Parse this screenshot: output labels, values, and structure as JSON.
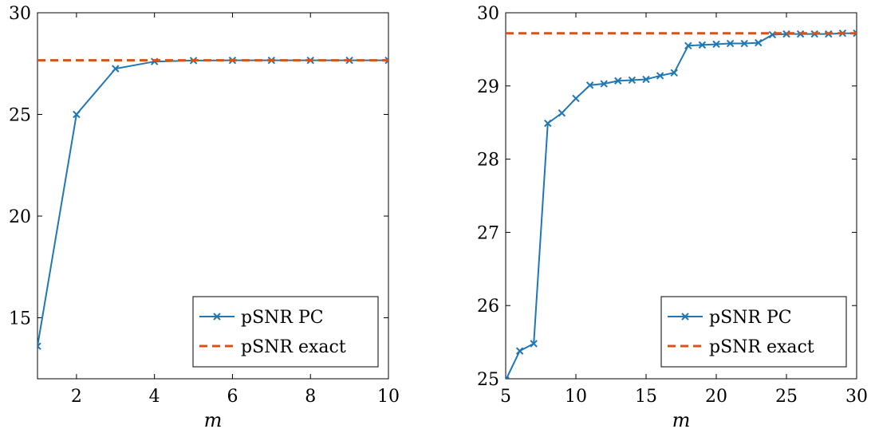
{
  "chart_data": [
    {
      "type": "line",
      "xlabel": "m",
      "ylabel": "",
      "xlim": [
        1,
        10
      ],
      "ylim": [
        12,
        30
      ],
      "xticks": [
        2,
        4,
        6,
        8,
        10
      ],
      "yticks": [
        15,
        20,
        25,
        30
      ],
      "grid": false,
      "legend_position": "bottom-right",
      "series": [
        {
          "name": "pSNR PC",
          "color": "#1f77b4",
          "style": "solid",
          "marker": "x",
          "x": [
            1,
            2,
            3,
            4,
            5,
            6,
            7,
            8,
            9,
            10
          ],
          "y": [
            13.6,
            25.0,
            27.25,
            27.6,
            27.65,
            27.66,
            27.66,
            27.66,
            27.66,
            27.66
          ]
        },
        {
          "name": "pSNR exact",
          "color": "#d95319",
          "style": "dashed",
          "marker": "none",
          "x": [
            1,
            10
          ],
          "y": [
            27.66,
            27.66
          ]
        }
      ]
    },
    {
      "type": "line",
      "xlabel": "m",
      "ylabel": "",
      "xlim": [
        5,
        30
      ],
      "ylim": [
        25,
        30
      ],
      "xticks": [
        5,
        10,
        15,
        20,
        25,
        30
      ],
      "yticks": [
        25,
        26,
        27,
        28,
        29,
        30
      ],
      "grid": false,
      "legend_position": "bottom-right",
      "series": [
        {
          "name": "pSNR PC",
          "color": "#1f77b4",
          "style": "solid",
          "marker": "x",
          "x": [
            5,
            6,
            7,
            8,
            9,
            10,
            11,
            12,
            13,
            14,
            15,
            16,
            17,
            18,
            19,
            20,
            21,
            22,
            23,
            24,
            25,
            26,
            27,
            28,
            29,
            30
          ],
          "y": [
            24.98,
            25.38,
            25.48,
            28.49,
            28.63,
            28.83,
            29.01,
            29.03,
            29.07,
            29.08,
            29.09,
            29.14,
            29.18,
            29.55,
            29.56,
            29.57,
            29.58,
            29.58,
            29.59,
            29.7,
            29.71,
            29.71,
            29.71,
            29.71,
            29.72,
            29.72
          ]
        },
        {
          "name": "pSNR exact",
          "color": "#d95319",
          "style": "dashed",
          "marker": "none",
          "x": [
            5,
            30
          ],
          "y": [
            29.72,
            29.72
          ]
        }
      ]
    }
  ]
}
